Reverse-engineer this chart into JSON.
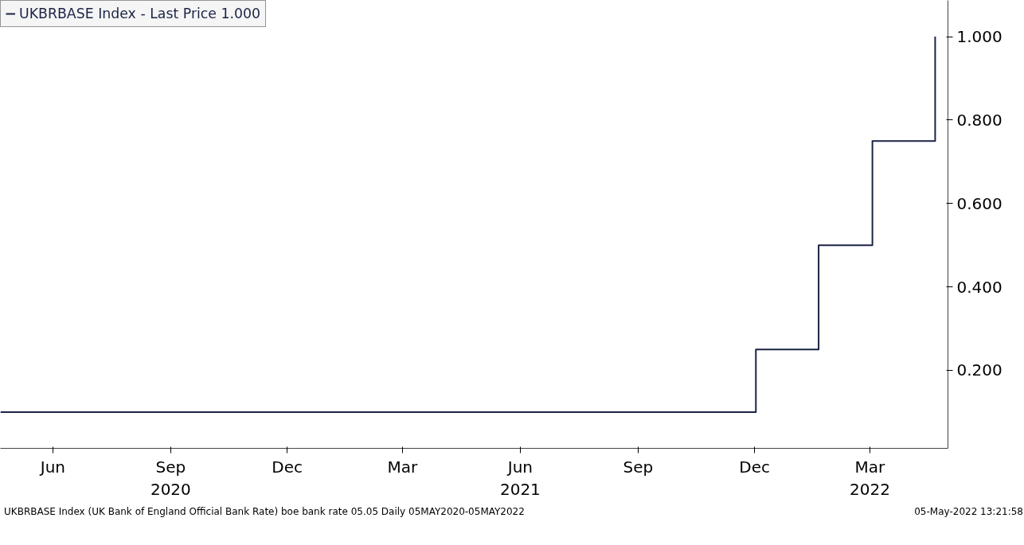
{
  "chart_data": {
    "type": "step",
    "x": [
      "2020-05-05",
      "2021-12-16",
      "2022-02-03",
      "2022-03-17",
      "2022-05-05"
    ],
    "series": [
      {
        "name": "UKBRBASE Index - Last Price 1.000",
        "color": "#1b2345",
        "values": [
          0.1,
          0.25,
          0.5,
          0.75,
          1.0
        ]
      }
    ],
    "xlim": [
      "2020-05-05",
      "2022-05-15"
    ],
    "xticks": [
      {
        "value": "2020-06-15",
        "label": "Jun"
      },
      {
        "value": "2020-09-15",
        "label": "Sep\n2020"
      },
      {
        "value": "2020-12-15",
        "label": "Dec"
      },
      {
        "value": "2021-03-15",
        "label": "Mar"
      },
      {
        "value": "2021-06-15",
        "label": "Jun\n2021"
      },
      {
        "value": "2021-09-15",
        "label": "Sep"
      },
      {
        "value": "2021-12-15",
        "label": "Dec"
      },
      {
        "value": "2022-03-15",
        "label": "Mar\n2022"
      }
    ],
    "ylim": [
      0.013,
      1.087
    ],
    "yticks": [
      {
        "value": 0.2,
        "label": "0.200"
      },
      {
        "value": 0.4,
        "label": "0.400"
      },
      {
        "value": 0.6,
        "label": "0.600"
      },
      {
        "value": 0.8,
        "label": "0.800"
      },
      {
        "value": 1.0,
        "label": "1.000"
      }
    ],
    "annotations": [
      "UKBRBASE Index (UK Bank of England Official Bank Rate) boe bank rate 05.05  Daily 05MAY2020-05MAY2022",
      "05-May-2022 13:21:58"
    ],
    "legend": "top left",
    "grid": false
  }
}
